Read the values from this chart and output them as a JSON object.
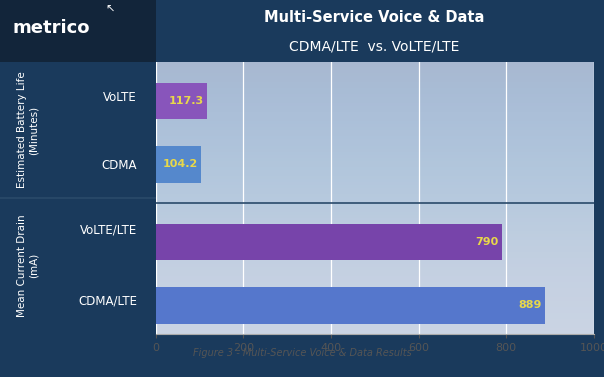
{
  "title_line1": "Multi-Service Voice & Data",
  "title_line2": "CDMA/LTE  vs. VoLTE/LTE",
  "caption": "Figure 3 - Multi-Service Voice & Data Results",
  "bars": [
    {
      "label": "VoLTE",
      "value": 117.3,
      "color": "#8855bb"
    },
    {
      "label": "CDMA",
      "value": 104.2,
      "color": "#5588cc"
    },
    {
      "label": "VoLTE/LTE",
      "value": 790,
      "color": "#7744aa"
    },
    {
      "label": "CDMA/LTE",
      "value": 889,
      "color": "#5577cc"
    }
  ],
  "groups": [
    {
      "label": "Estimated Battery Life\n(Minutes)",
      "bar_indices": [
        0,
        1
      ]
    },
    {
      "label": "Mean Current Drain\n(mA)",
      "bar_indices": [
        2,
        3
      ]
    }
  ],
  "xlim": [
    0,
    1000
  ],
  "xticks": [
    0,
    200,
    400,
    600,
    800,
    1000
  ],
  "bar_height": 0.52,
  "chart_bg_top": "#c5cfe0",
  "chart_bg_bot": "#b8c5dc",
  "outer_bg": "#1a3a5c",
  "left_panel_bg": "#12253a",
  "header_bg": "#2a5a82",
  "title_color": "#ffffff",
  "label_color": "#ffffff",
  "tick_color": "#555555",
  "value_label_color": "#e8d84a",
  "bar_label_fontsize": 8.5,
  "value_fontsize": 8,
  "title_fontsize": 10.5,
  "group_label_fontsize": 7.5,
  "caption_fontsize": 7,
  "caption_color": "#555555"
}
